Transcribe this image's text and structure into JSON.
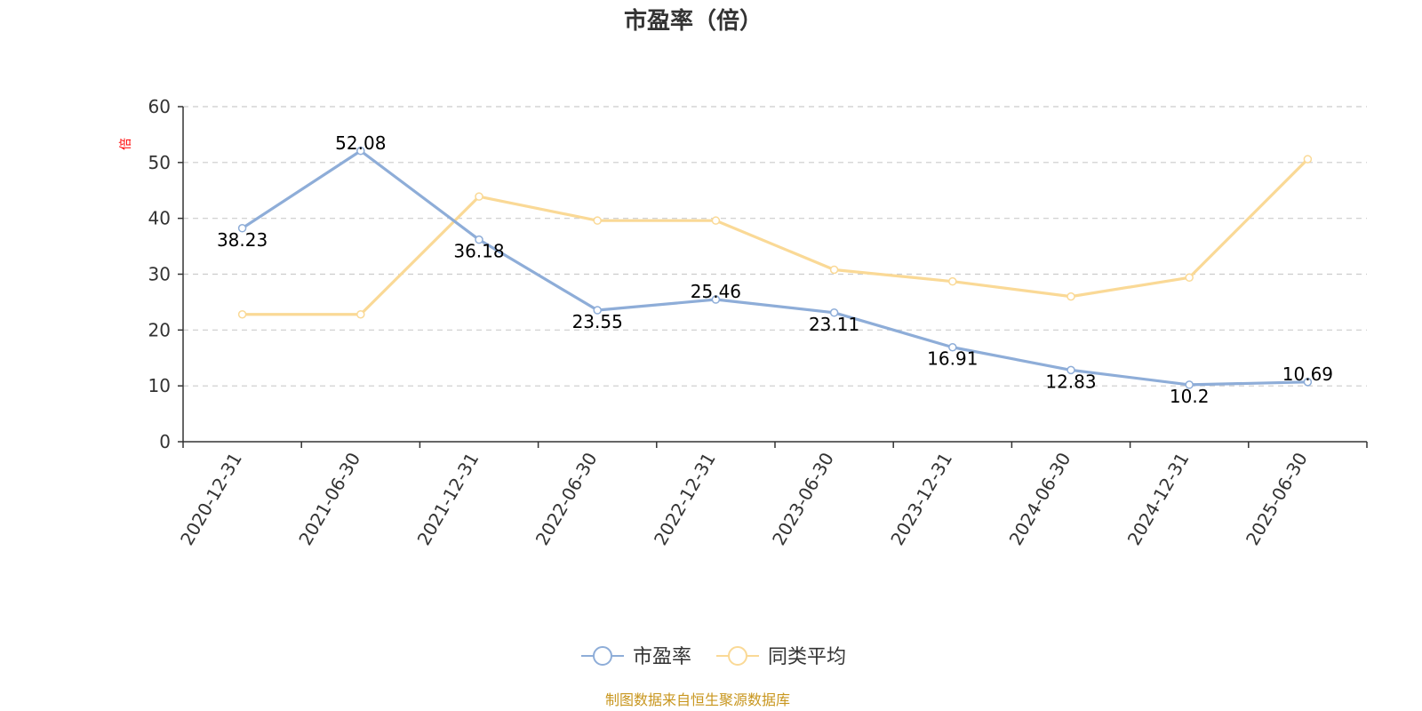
{
  "chart_data": {
    "type": "line",
    "title": "市盈率（倍）",
    "ylabel": "倍",
    "xlabel": "",
    "ylim": [
      0,
      60
    ],
    "y_ticks": [
      0,
      10,
      20,
      30,
      40,
      50,
      60
    ],
    "grid": true,
    "legend_position": "bottom",
    "categories": [
      "2020-12-31",
      "2021-06-30",
      "2021-12-31",
      "2022-06-30",
      "2022-12-31",
      "2023-06-30",
      "2023-12-31",
      "2024-06-30",
      "2024-12-31",
      "2025-06-30"
    ],
    "series": [
      {
        "name": "市盈率",
        "color": "#8eadd8",
        "values": [
          38.23,
          52.08,
          36.18,
          23.55,
          25.46,
          23.11,
          16.91,
          12.83,
          10.2,
          10.69
        ],
        "labels": [
          "38.23",
          "52.08",
          "36.18",
          "23.55",
          "25.46",
          "23.11",
          "16.91",
          "12.83",
          "10.2",
          "10.69"
        ]
      },
      {
        "name": "同类平均",
        "color": "#fad996",
        "values": [
          22.8,
          22.8,
          43.9,
          39.6,
          39.6,
          30.8,
          28.7,
          26.0,
          29.4,
          50.6
        ]
      }
    ]
  },
  "source_text": "制图数据来自恒生聚源数据库"
}
